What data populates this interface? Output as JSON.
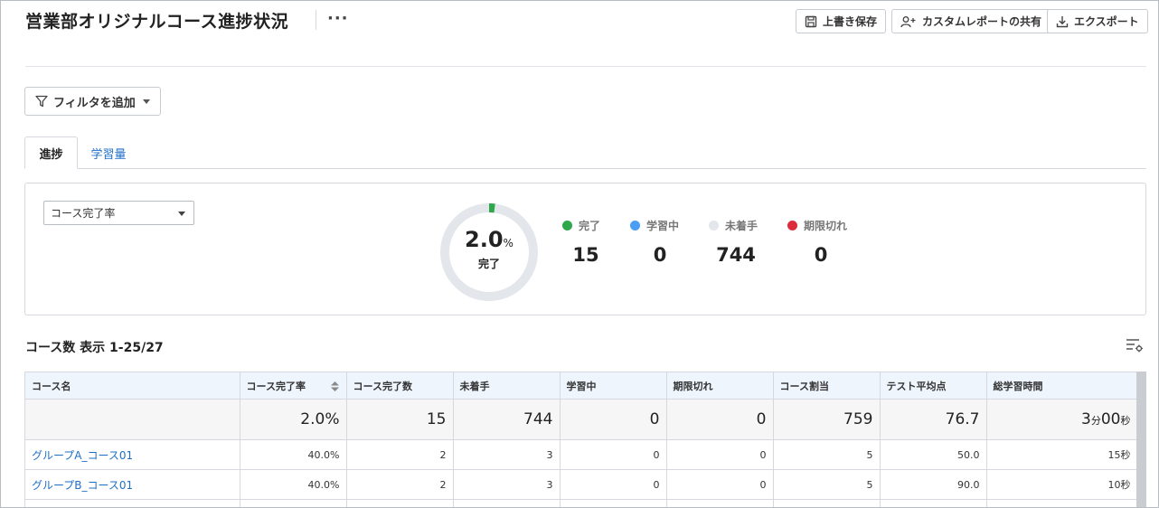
{
  "header": {
    "title": "営業部オリジナルコース進捗状況",
    "more_label": "···",
    "buttons": {
      "save": "上書き保存",
      "share": "カスタムレポートの共有",
      "export": "エクスポート"
    }
  },
  "filter": {
    "label": "フィルタを追加"
  },
  "tabs": [
    {
      "label": "進捗",
      "active": true
    },
    {
      "label": "学習量",
      "active": false
    }
  ],
  "summary": {
    "metric_select": "コース完了率",
    "donut": {
      "percent": "2.0",
      "unit": "%",
      "label": "完了",
      "fraction": 0.02
    },
    "stats": [
      {
        "label": "完了",
        "value": "15",
        "color": "#2ea84a"
      },
      {
        "label": "学習中",
        "value": "0",
        "color": "#4a9ff5"
      },
      {
        "label": "未着手",
        "value": "744",
        "color": "#e3e6ea"
      },
      {
        "label": "期限切れ",
        "value": "0",
        "color": "#dc2c3a"
      }
    ]
  },
  "table": {
    "count_label": "コース数 表示 1-25/27",
    "columns": [
      "コース名",
      "コース完了率",
      "コース完了数",
      "未着手",
      "学習中",
      "期限切れ",
      "コース割当",
      "テスト平均点",
      "総学習時間"
    ],
    "total_row": {
      "rate": "2.0%",
      "done": "15",
      "not_started": "744",
      "in_progress": "0",
      "expired": "0",
      "assigned": "759",
      "avg_score": "76.7",
      "time_min": "3",
      "time_min_unit": "分",
      "time_sec": "00",
      "time_sec_unit": "秒"
    },
    "rows": [
      {
        "name": "グループA_コース01",
        "rate": "40.0%",
        "done": "2",
        "not_started": "3",
        "in_progress": "0",
        "expired": "0",
        "assigned": "5",
        "avg_score": "50.0",
        "time": "15秒"
      },
      {
        "name": "グループB_コース01",
        "rate": "40.0%",
        "done": "2",
        "not_started": "3",
        "in_progress": "0",
        "expired": "0",
        "assigned": "5",
        "avg_score": "90.0",
        "time": "10秒"
      }
    ]
  },
  "colors": {
    "link": "#1f6fc8",
    "header_bg": "#eef5fc",
    "donut_track": "#e3e6ea",
    "donut_fill": "#2ea84a"
  }
}
